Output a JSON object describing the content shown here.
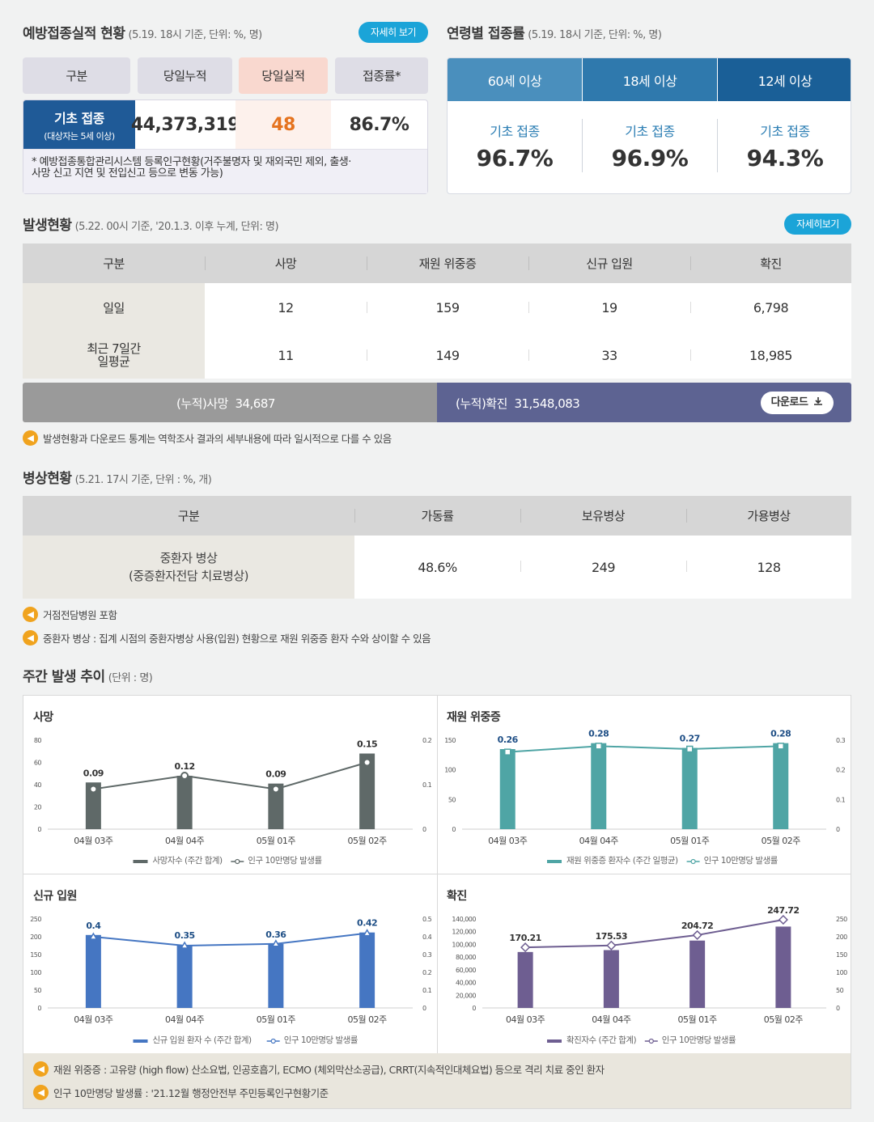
{
  "vaccination": {
    "title": "예방접종실적 현황",
    "subtitle": "(5.19. 18시 기준, 단위: %, 명)",
    "detail_button": "자세히 보기",
    "headers": [
      "구분",
      "당일누적",
      "당일실적",
      "접종률*"
    ],
    "row_label": "기초 접종",
    "row_sublabel": "(대상자는 5세 이상)",
    "cumulative": "44,373,319",
    "daily": "48",
    "rate": "86.7%",
    "note_line1": "* 예방접종통합관리시스템 등록인구현황(거주불명자 및 재외국민 제외, 출생·",
    "note_line2": "사망 신고 지연 및 전입신고 등으로 변동 가능)"
  },
  "age_rates": {
    "title": "연령별 접종률",
    "subtitle": "(5.19. 18시 기준, 단위: %, 명)",
    "groups": [
      {
        "header": "60세 이상",
        "label": "기초 접종",
        "value": "96.7%",
        "color": "#4a8fbd"
      },
      {
        "header": "18세 이상",
        "label": "기초 접종",
        "value": "96.9%",
        "color": "#2f79ad"
      },
      {
        "header": "12세 이상",
        "label": "기초 접종",
        "value": "94.3%",
        "color": "#1a5f97"
      }
    ]
  },
  "occurrence": {
    "title": "발생현황",
    "subtitle": "(5.22. 00시 기준, '20.1.3. 이후 누계, 단위: 명)",
    "detail_button": "자세히보기",
    "headers": [
      "구분",
      "사망",
      "재원 위중증",
      "신규 입원",
      "확진"
    ],
    "rows": [
      {
        "label": "일일",
        "values": [
          "12",
          "159",
          "19",
          "6,798"
        ]
      },
      {
        "label": "최근 7일간\n일평균",
        "label1": "최근 7일간",
        "label2": "일평균",
        "values": [
          "11",
          "149",
          "33",
          "18,985"
        ]
      }
    ],
    "cum_death_label": "(누적)사망",
    "cum_death_value": "34,687",
    "cum_confirmed_label": "(누적)확진",
    "cum_confirmed_value": "31,548,083",
    "download_label": "다운로드",
    "note": "발생현황과 다운로드 통계는 역학조사 결과의 세부내용에 따라 일시적으로 다를 수 있음"
  },
  "beds": {
    "title": "병상현황",
    "subtitle": "(5.21. 17시 기준, 단위 : %, 개)",
    "headers": [
      "구분",
      "가동률",
      "보유병상",
      "가용병상"
    ],
    "row_label1": "중환자 병상",
    "row_label2": "(중증환자전담 치료병상)",
    "values": [
      "48.6%",
      "249",
      "128"
    ],
    "notes": [
      "거점전담병원 포함",
      "중환자 병상 : 집계 시점의 중환자병상 사용(입원) 현황으로 재원 위중증 환자 수와 상이할 수 있음"
    ]
  },
  "weekly": {
    "title": "주간 발생 추이",
    "subtitle": "(단위 : 명)",
    "notes": [
      "재원 위중증 : 고유량 (high flow) 산소요법, 인공호흡기, ECMO (체외막산소공급), CRRT(지속적인대체요법) 등으로 격리 치료 중인 환자",
      "인구 10만명당 발생률 : '21.12월 행정안전부 주민등록인구현황기준"
    ]
  },
  "chart_data": [
    {
      "type": "bar",
      "title": "사망",
      "categories": [
        "04월 03주",
        "04월 04주",
        "05월 01주",
        "05월 02주"
      ],
      "series": [
        {
          "name": "사망자수 (주간 합계)",
          "type": "bar",
          "axis": "left",
          "values": [
            42,
            48,
            41,
            68
          ]
        },
        {
          "name": "인구 10만명당 발생률",
          "type": "line",
          "axis": "right",
          "values": [
            0.09,
            0.12,
            0.09,
            0.15
          ]
        }
      ],
      "ylim": [
        0,
        80
      ],
      "yticks": [
        0,
        20,
        40,
        60,
        80
      ],
      "y2lim": [
        0,
        0.2
      ],
      "y2ticks": [
        0,
        0.1,
        0.2
      ],
      "colors": {
        "bar": "#5f6968",
        "line": "#5f6968"
      }
    },
    {
      "type": "bar",
      "title": "재원 위중증",
      "categories": [
        "04월 03주",
        "04월 04주",
        "05월 01주",
        "05월 02주"
      ],
      "series": [
        {
          "name": "재원 위중증 환자수 (주간 일평균)",
          "type": "bar",
          "axis": "left",
          "values": [
            135,
            145,
            137,
            145
          ]
        },
        {
          "name": "인구 10만명당 발생률",
          "type": "line",
          "axis": "right",
          "values": [
            0.26,
            0.28,
            0.27,
            0.28
          ]
        }
      ],
      "ylim": [
        0,
        150
      ],
      "yticks": [
        0,
        50,
        100,
        150
      ],
      "y2lim": [
        0,
        0.3
      ],
      "y2ticks": [
        0,
        0.1,
        0.2,
        0.3
      ],
      "colors": {
        "bar": "#4fa5a5",
        "line": "#4fa5a5"
      }
    },
    {
      "type": "bar",
      "title": "신규 입원",
      "categories": [
        "04월 03주",
        "04월 04주",
        "05월 01주",
        "05월 02주"
      ],
      "series": [
        {
          "name": "신규 입원 환자 수 (주간 합계)",
          "type": "bar",
          "axis": "left",
          "values": [
            205,
            177,
            180,
            212
          ]
        },
        {
          "name": "인구 10만명당 발생률",
          "type": "line",
          "axis": "right",
          "values": [
            0.4,
            0.35,
            0.36,
            0.42
          ]
        }
      ],
      "ylim": [
        0,
        250
      ],
      "yticks": [
        0,
        50,
        100,
        150,
        200,
        250
      ],
      "y2lim": [
        0,
        0.5
      ],
      "y2ticks": [
        0,
        0.1,
        0.2,
        0.3,
        0.4,
        0.5
      ],
      "colors": {
        "bar": "#4576c2",
        "line": "#4576c2"
      }
    },
    {
      "type": "bar",
      "title": "확진",
      "categories": [
        "04월 03주",
        "04월 04주",
        "05월 01주",
        "05월 02주"
      ],
      "series": [
        {
          "name": "확진자수 (주간 합계)",
          "type": "bar",
          "axis": "left",
          "values": [
            88000,
            91000,
            106000,
            128000
          ]
        },
        {
          "name": "인구 10만명당 발생률",
          "type": "line",
          "axis": "right",
          "values": [
            170.21,
            175.53,
            204.72,
            247.72
          ]
        }
      ],
      "ylim": [
        0,
        140000
      ],
      "yticks": [
        0,
        20000,
        40000,
        60000,
        80000,
        100000,
        120000,
        140000
      ],
      "y2lim": [
        0,
        250
      ],
      "y2ticks": [
        0,
        50,
        100,
        150,
        200,
        250
      ],
      "colors": {
        "bar": "#6e5e91",
        "line": "#6e5e91"
      }
    }
  ]
}
